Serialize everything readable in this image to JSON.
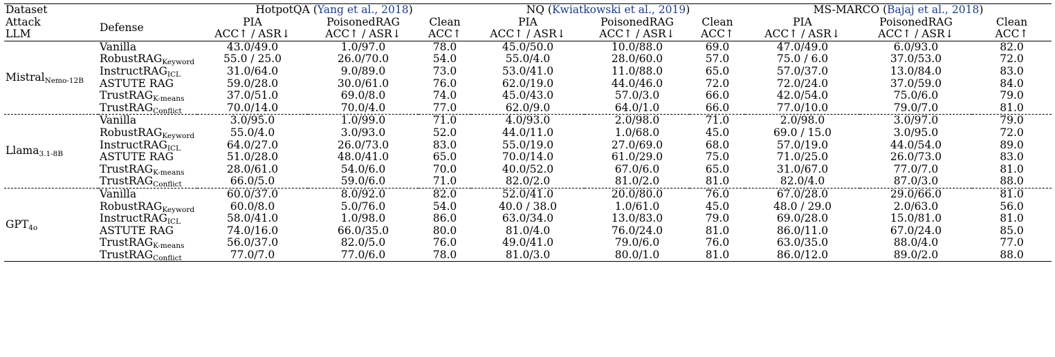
{
  "header": {
    "row_labels": [
      "Dataset",
      "Attack",
      "LLM"
    ],
    "defense_label": "Defense",
    "datasets": [
      {
        "name": "HotpotQA",
        "cite": "Yang et al., 2018"
      },
      {
        "name": "NQ",
        "cite": "Kwiatkowski et al., 2019"
      },
      {
        "name": "MS-MARCO",
        "cite": "Bajaj et al., 2018"
      }
    ],
    "attacks": [
      "PIA",
      "PoisonedRAG",
      "Clean"
    ],
    "metrics": [
      "ACC↑ / ASR↓",
      "ACC↑ / ASR↓",
      "ACC↑"
    ]
  },
  "groups": [
    {
      "llm": "Mistral",
      "llm_sub": "Nemo-12B",
      "rows": [
        {
          "defense": "Vanilla",
          "sub": "",
          "cells": [
            "43.0/49.0",
            "1.0/97.0",
            "78.0",
            "45.0/50.0",
            "10.0/88.0",
            "69.0",
            "47.0/49.0",
            "6.0/93.0",
            "82.0"
          ]
        },
        {
          "defense": "RobustRAG",
          "sub": "Keyword",
          "cells": [
            "55.0 / 25.0",
            "26.0/70.0",
            "54.0",
            "55.0/4.0",
            "28.0/60.0",
            "57.0",
            "75.0 / 6.0",
            "37.0/53.0",
            "72.0"
          ]
        },
        {
          "defense": "InstructRAG",
          "sub": "ICL",
          "cells": [
            "31.0/64.0",
            "9.0/89.0",
            "73.0",
            "53.0/41.0",
            "11.0/88.0",
            "65.0",
            "57.0/37.0",
            "13.0/84.0",
            "83.0"
          ]
        },
        {
          "defense": "ASTUTE RAG",
          "sub": "",
          "cells": [
            "59.0/28.0",
            "30.0/61.0",
            "76.0",
            "62.0/19.0",
            "44.0/46.0",
            "72.0",
            "72.0/24.0",
            "37.0/59.0",
            "84.0"
          ]
        },
        {
          "defense": "TrustRAG",
          "sub": "K-means",
          "cells": [
            "37.0/51.0",
            "69.0/8.0",
            "74.0",
            "45.0/43.0",
            "57.0/3.0",
            "66.0",
            "42.0/54.0",
            "75.0/6.0",
            "79.0"
          ]
        },
        {
          "defense": "TrustRAG",
          "sub": "Conflict",
          "cells": [
            "70.0/14.0",
            "70.0/4.0",
            "77.0",
            "62.0/9.0",
            "64.0/1.0",
            "66.0",
            "77.0/10.0",
            "79.0/7.0",
            "81.0"
          ]
        }
      ]
    },
    {
      "llm": "Llama",
      "llm_sub": "3.1-8B",
      "rows": [
        {
          "defense": "Vanilla",
          "sub": "",
          "cells": [
            "3.0/95.0",
            "1.0/99.0",
            "71.0",
            "4.0/93.0",
            "2.0/98.0",
            "71.0",
            "2.0/98.0",
            "3.0/97.0",
            "79.0"
          ]
        },
        {
          "defense": "RobustRAG",
          "sub": "Keyword",
          "cells": [
            "55.0/4.0",
            "3.0/93.0",
            "52.0",
            "44.0/11.0",
            "1.0/68.0",
            "45.0",
            "69.0 / 15.0",
            "3.0/95.0",
            "72.0"
          ]
        },
        {
          "defense": "InstructRAG",
          "sub": "ICL",
          "cells": [
            "64.0/27.0",
            "26.0/73.0",
            "83.0",
            "55.0/19.0",
            "27.0/69.0",
            "68.0",
            "57.0/19.0",
            "44.0/54.0",
            "89.0"
          ]
        },
        {
          "defense": "ASTUTE RAG",
          "sub": "",
          "cells": [
            "51.0/28.0",
            "48.0/41.0",
            "65.0",
            "70.0/14.0",
            "61.0/29.0",
            "75.0",
            "71.0/25.0",
            "26.0/73.0",
            "83.0"
          ]
        },
        {
          "defense": "TrustRAG",
          "sub": "K-means",
          "cells": [
            "28.0/61.0",
            "54.0/6.0",
            "70.0",
            "40.0/52.0",
            "67.0/6.0",
            "65.0",
            "31.0/67.0",
            "77.0/7.0",
            "81.0"
          ]
        },
        {
          "defense": "TrustRAG",
          "sub": "Conflict",
          "cells": [
            "66.0/5.0",
            "59.0/6.0",
            "71.0",
            "82.0/2.0",
            "81.0/2.0",
            "81.0",
            "82.0/4.0",
            "87.0/3.0",
            "88.0"
          ]
        }
      ]
    },
    {
      "llm": "GPT",
      "llm_sub": "4o",
      "rows": [
        {
          "defense": "Vanilla",
          "sub": "",
          "cells": [
            "60.0/37.0",
            "8.0/92.0",
            "82.0",
            "52.0/41.0",
            "20.0/80.0",
            "76.0",
            "67.0/28.0",
            "29.0/66.0",
            "81.0"
          ]
        },
        {
          "defense": "RobustRAG",
          "sub": "Keyword",
          "cells": [
            "60.0/8.0",
            "5.0/76.0",
            "54.0",
            "40.0 / 38.0",
            "1.0/61.0",
            "45.0",
            "48.0 / 29.0",
            "2.0/63.0",
            "56.0"
          ]
        },
        {
          "defense": "InstructRAG",
          "sub": "ICL",
          "cells": [
            "58.0/41.0",
            "1.0/98.0",
            "86.0",
            "63.0/34.0",
            "13.0/83.0",
            "79.0",
            "69.0/28.0",
            "15.0/81.0",
            "81.0"
          ]
        },
        {
          "defense": "ASTUTE RAG",
          "sub": "",
          "cells": [
            "74.0/16.0",
            "66.0/35.0",
            "80.0",
            "81.0/4.0",
            "76.0/24.0",
            "81.0",
            "86.0/11.0",
            "67.0/24.0",
            "85.0"
          ]
        },
        {
          "defense": "TrustRAG",
          "sub": "K-means",
          "cells": [
            "56.0/37.0",
            "82.0/5.0",
            "76.0",
            "49.0/41.0",
            "79.0/6.0",
            "76.0",
            "63.0/35.0",
            "88.0/4.0",
            "77.0"
          ]
        },
        {
          "defense": "TrustRAG",
          "sub": "Conflict",
          "cells": [
            "77.0/7.0",
            "77.0/6.0",
            "78.0",
            "81.0/3.0",
            "80.0/1.0",
            "81.0",
            "86.0/12.0",
            "89.0/2.0",
            "88.0"
          ]
        }
      ]
    }
  ]
}
